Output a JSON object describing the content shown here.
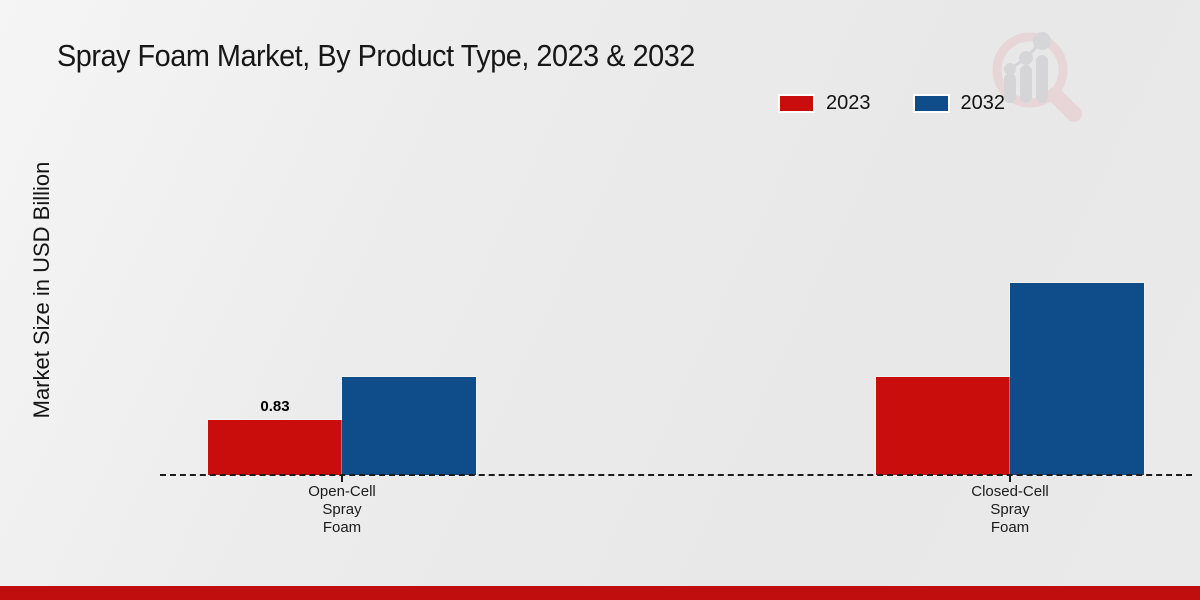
{
  "chart_data": {
    "type": "bar",
    "title": "Spray Foam Market, By Product Type, 2023 & 2032",
    "ylabel": "Market Size in USD Billion",
    "categories": [
      "Open-Cell\nSpray\nFoam",
      "Closed-Cell\nSpray\nFoam"
    ],
    "series": [
      {
        "name": "2023",
        "color": "#c90c0c",
        "values": [
          0.83,
          1.48
        ],
        "data_labels": [
          "0.83",
          ""
        ]
      },
      {
        "name": "2032",
        "color": "#0f4d8a",
        "values": [
          1.48,
          2.9
        ],
        "data_labels": [
          "",
          ""
        ]
      }
    ],
    "legend_position": "top-right",
    "baseline_style": "dashed",
    "grid": false,
    "ylim": [
      0,
      3.2
    ]
  },
  "branding": {
    "watermark_icon": "magnifier-growth-chart-logo-icon",
    "accent_bar_color": "#c00d0d"
  }
}
